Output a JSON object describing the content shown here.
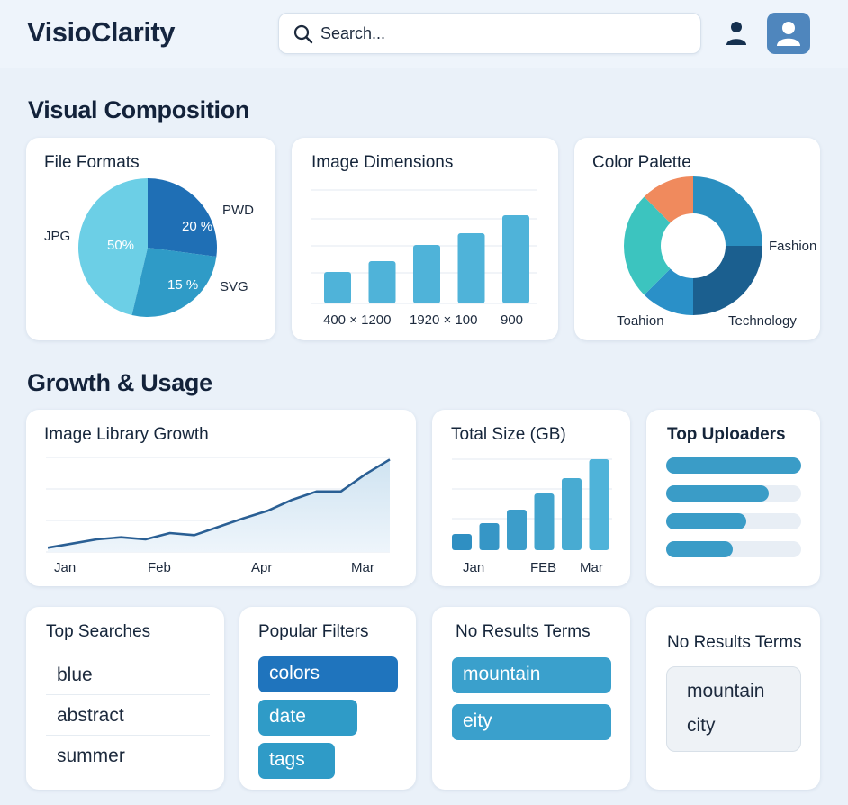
{
  "app": {
    "name": "VisioClarity"
  },
  "search": {
    "placeholder": "Search..."
  },
  "header": {
    "icons": [
      "search-icon",
      "user-icon",
      "avatar-icon"
    ]
  },
  "colors": {
    "background": "#eaf1f9",
    "accent_dark": "#1f6fb5",
    "accent_mid": "#2f9bc7",
    "accent_light": "#6ccfe6",
    "teal": "#3cc4bf",
    "orange": "#f08a5d",
    "navy": "#1b5f8f"
  },
  "sections": {
    "visual_composition": "Visual Composition",
    "growth_usage": "Growth & Usage"
  },
  "file_formats": {
    "title": "File Formats",
    "chart_data": {
      "type": "pie",
      "slices": [
        {
          "label": "JPG",
          "value": 50,
          "value_label": "50%",
          "color": "#6ccfe6"
        },
        {
          "label": "PWD",
          "value": 20,
          "value_label": "20 %",
          "color": "#1f6fb5"
        },
        {
          "label": "SVG",
          "value": 15,
          "value_label": "15 %",
          "color": "#2f9bc7"
        }
      ]
    }
  },
  "image_dimensions": {
    "title": "Image Dimensions",
    "chart_data": {
      "type": "bar",
      "values": [
        35,
        47,
        65,
        78,
        98
      ],
      "ylim": [
        0,
        130
      ],
      "tick_labels": [
        "400 × 1200",
        "1920 × 100",
        "900"
      ],
      "color": "#4fb3d9"
    }
  },
  "color_palette": {
    "title": "Color Palette",
    "chart_data": {
      "type": "pie",
      "slices": [
        {
          "label": "Fashion",
          "value": 25,
          "color": "#2a8fc0"
        },
        {
          "label": "Technology",
          "value": 25,
          "color": "#1b5f8f"
        },
        {
          "label": "Toahion",
          "value": 12.5,
          "color": "#2a90c8"
        },
        {
          "label": "",
          "value": 25,
          "color": "#3cc4bf"
        },
        {
          "label": "",
          "value": 12.5,
          "color": "#f08a5d"
        }
      ]
    }
  },
  "library_growth": {
    "title": "Image Library Growth",
    "chart_data": {
      "type": "area",
      "values": [
        10,
        20,
        30,
        35,
        30,
        45,
        40,
        60,
        80,
        98,
        124,
        144,
        144,
        185,
        220
      ],
      "ylim": [
        0,
        300
      ],
      "tick_labels": [
        "Jan",
        "Feb",
        "Apr",
        "Mar"
      ]
    }
  },
  "total_size": {
    "title": "Total Size (GB)",
    "chart_data": {
      "type": "bar",
      "values": [
        18,
        30,
        45,
        63,
        80,
        101
      ],
      "ylim": [
        0,
        101
      ],
      "tick_labels": [
        "Jan",
        "FEB",
        "Mar"
      ],
      "colors": [
        "#2f8fc2",
        "#3696c6",
        "#3c9dca",
        "#42a4ce",
        "#48abd2",
        "#4fb3d9"
      ]
    }
  },
  "top_uploaders": {
    "title": "Top Uploaders",
    "bars": [
      100,
      76,
      59,
      49
    ]
  },
  "top_searches": {
    "title": "Top Searches",
    "items": [
      "blue",
      "abstract",
      "summer"
    ]
  },
  "popular_filters": {
    "title": "Popular Filters",
    "items": [
      {
        "label": "colors",
        "color": "#1f74bd"
      },
      {
        "label": "date",
        "color": "#2f9bc7"
      },
      {
        "label": "tags",
        "color": "#2f9bc7"
      }
    ]
  },
  "no_results_a": {
    "title": "No Results Terms",
    "items": [
      "mountain",
      "eity"
    ]
  },
  "no_results_b": {
    "title": "No Results Terms",
    "items": [
      "mountain",
      "city"
    ]
  }
}
